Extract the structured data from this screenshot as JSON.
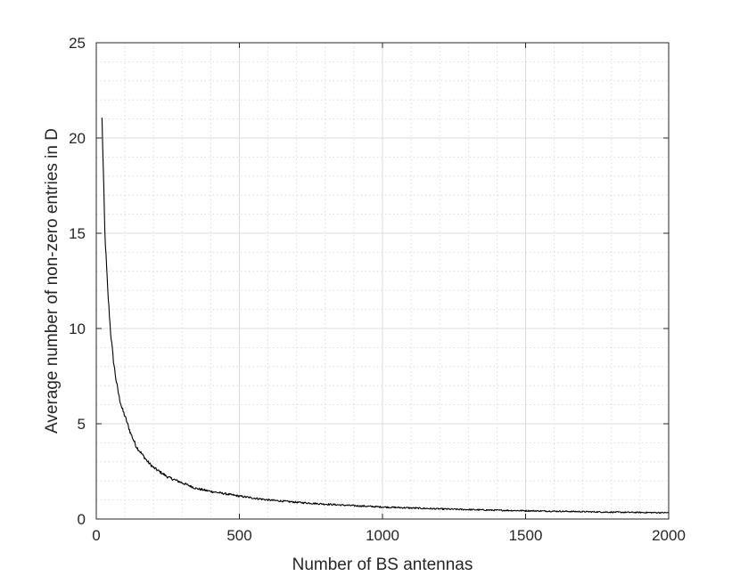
{
  "chart_data": {
    "type": "line",
    "title": "",
    "xlabel": "Number of BS antennas",
    "ylabel": "Average number of non-zero entries in D",
    "xlim": [
      0,
      2000
    ],
    "ylim": [
      0,
      25
    ],
    "xticks": [
      0,
      500,
      1000,
      1500,
      2000
    ],
    "yticks": [
      0,
      5,
      10,
      15,
      20,
      25
    ],
    "xtick_labels": [
      "0",
      "500",
      "1000",
      "1500",
      "2000"
    ],
    "ytick_labels": [
      "0",
      "5",
      "10",
      "15",
      "20",
      "25"
    ],
    "grid": true,
    "minor_grid": true,
    "legend": "none",
    "line_color": "#000000",
    "series": [
      {
        "x": [
          20,
          30,
          40,
          50,
          60,
          70,
          80,
          90,
          100,
          120,
          140,
          160,
          180,
          200,
          250,
          300,
          350,
          400,
          500,
          600,
          700,
          800,
          900,
          1000,
          1200,
          1400,
          1600,
          1800,
          2000
        ],
        "values": [
          21.0,
          15.0,
          12.0,
          9.8,
          8.3,
          7.2,
          6.4,
          5.8,
          5.4,
          4.5,
          3.8,
          3.4,
          3.0,
          2.7,
          2.2,
          1.9,
          1.6,
          1.45,
          1.2,
          1.0,
          0.88,
          0.78,
          0.7,
          0.63,
          0.53,
          0.46,
          0.41,
          0.36,
          0.33
        ]
      }
    ]
  }
}
